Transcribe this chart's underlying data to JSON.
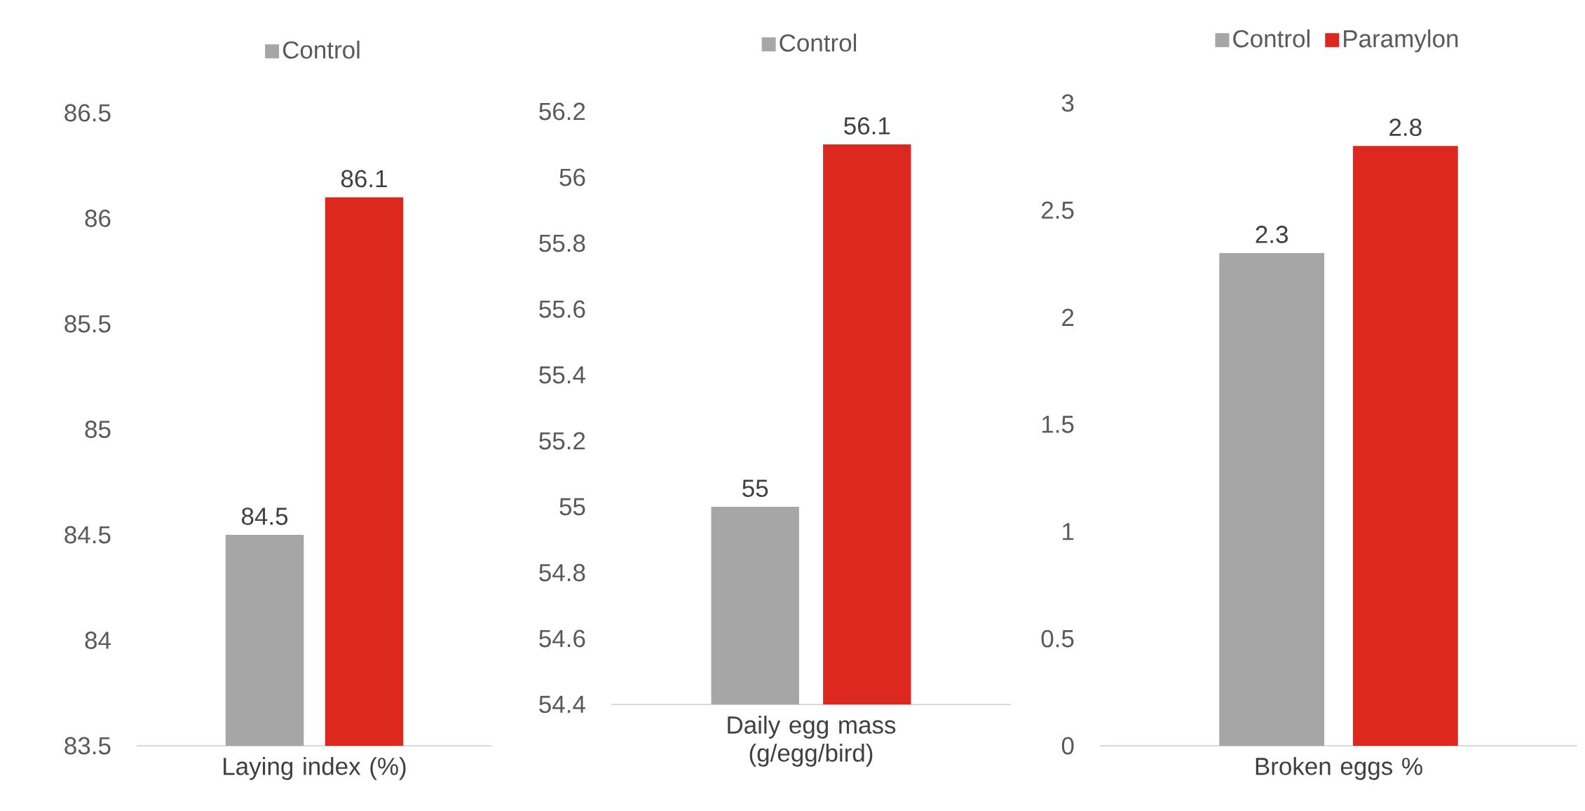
{
  "chart_data": [
    {
      "type": "bar",
      "categories": [
        "Laying index (%)"
      ],
      "series": [
        {
          "name": "Control",
          "color": "#a6a6a6",
          "values": [
            84.5
          ]
        },
        {
          "color": "#dc281e",
          "values": [
            86.1
          ]
        }
      ],
      "ylim": [
        83.5,
        86.5
      ],
      "yticks": [
        83.5,
        84,
        84.5,
        85,
        85.5,
        86,
        86.5
      ],
      "legend": "top",
      "data_labels": true
    },
    {
      "type": "bar",
      "categories": [
        "Daily egg mass (g/egg/bird)"
      ],
      "series": [
        {
          "name": "Control",
          "color": "#a6a6a6",
          "values": [
            55
          ]
        },
        {
          "color": "#dc281e",
          "values": [
            56.1
          ]
        }
      ],
      "ylim": [
        54.4,
        56.2
      ],
      "yticks": [
        54.4,
        54.6,
        54.8,
        55,
        55.2,
        55.4,
        55.6,
        55.8,
        56,
        56.2
      ],
      "legend": "top",
      "data_labels": true
    },
    {
      "type": "bar",
      "categories": [
        "Broken eggs %"
      ],
      "series": [
        {
          "name": "Control",
          "color": "#a6a6a6",
          "values": [
            2.3
          ]
        },
        {
          "name": "Paramylon",
          "color": "#dc281e",
          "values": [
            2.8
          ]
        }
      ],
      "ylim": [
        0,
        3
      ],
      "yticks": [
        0,
        0.5,
        1,
        1.5,
        2,
        2.5,
        3
      ],
      "legend": "top",
      "data_labels": true
    }
  ]
}
